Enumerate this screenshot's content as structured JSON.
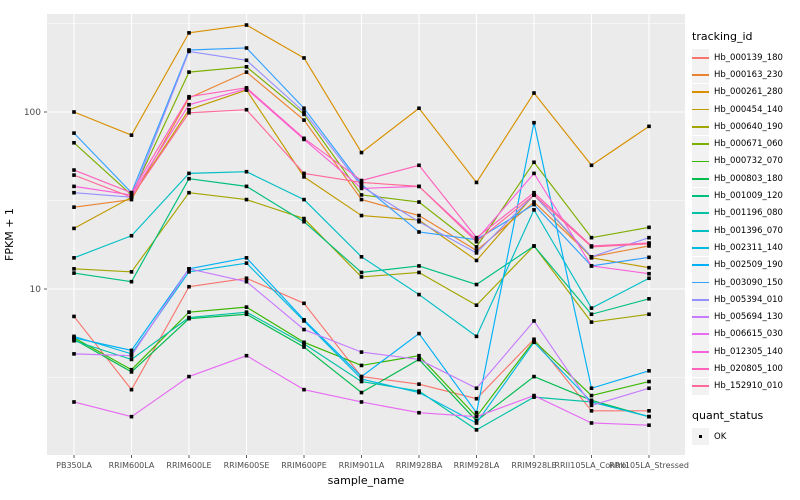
{
  "figure": {
    "background": "#FFFFFF",
    "panel_background": "#EBEBEB",
    "grid_color": "#FFFFFF",
    "tick_color": "#333333",
    "tick_label_color": "#4D4D4D",
    "axis_title_color": "#000000",
    "point_color": "#000000"
  },
  "legend": {
    "tracking_title": "tracking_id",
    "quant_title": "quant_status",
    "quant_items": [
      {
        "label": "OK",
        "marker": "filled-square"
      }
    ]
  },
  "axis": {
    "y_title": "FPKM + 1",
    "x_title": "sample_name",
    "y_tick_labels": [
      "100",
      "10"
    ]
  },
  "chart_data": {
    "type": "line",
    "title": "",
    "xlabel": "sample_name",
    "ylabel": "FPKM + 1",
    "y_scale": "log10",
    "ylim": [
      1.15,
      358
    ],
    "y_major_ticks": [
      10,
      100
    ],
    "y_minor_gridlines": [
      3.162,
      31.62,
      316.2
    ],
    "grid": true,
    "legend_position": "right",
    "point_shape": "filled-square",
    "categories": [
      "PB350LA",
      "RRIM600LA",
      "RRIM600LE",
      "RRIM600SE",
      "RRIM600PE",
      "RRIM901LA",
      "RRIM928BA",
      "RRIM928LA",
      "RRIM928LE",
      "RRII105LA_Control",
      "RRII105LA_Stressed"
    ],
    "series": [
      {
        "name": "Hb_000139_180",
        "color": "#F8766D",
        "values": [
          7.0,
          2.7,
          10.3,
          11.5,
          8.3,
          3.2,
          2.9,
          2.4,
          5.2,
          2.05,
          2.05
        ]
      },
      {
        "name": "Hb_000163_230",
        "color": "#EA8331",
        "values": [
          29,
          32,
          120,
          168,
          90,
          32,
          26,
          16.5,
          31,
          15.2,
          17.5
        ]
      },
      {
        "name": "Hb_000261_280",
        "color": "#D89000",
        "values": [
          100,
          74,
          280,
          310,
          202,
          59,
          105,
          40,
          128,
          50,
          83
        ]
      },
      {
        "name": "Hb_000454_140",
        "color": "#C09B00",
        "values": [
          22,
          33,
          103,
          133,
          43,
          26,
          24.5,
          14.5,
          34,
          15.0,
          13.2
        ]
      },
      {
        "name": "Hb_000640_190",
        "color": "#A3A500",
        "values": [
          13,
          12.5,
          35,
          32,
          25,
          11.7,
          12.4,
          8.1,
          17.5,
          6.5,
          7.2
        ]
      },
      {
        "name": "Hb_000671_060",
        "color": "#7CAE00",
        "values": [
          67,
          34,
          168,
          180,
          97,
          34,
          31,
          17.3,
          52,
          19.5,
          22.3
        ]
      },
      {
        "name": "Hb_000732_070",
        "color": "#39B600",
        "values": [
          5.3,
          3.5,
          7.4,
          7.9,
          5.0,
          3.7,
          4.2,
          1.9,
          5.1,
          2.5,
          3.0
        ]
      },
      {
        "name": "Hb_000803_180",
        "color": "#00BB4E",
        "values": [
          5.2,
          3.4,
          6.8,
          7.2,
          4.7,
          2.6,
          4.0,
          1.8,
          3.2,
          2.35,
          1.9
        ]
      },
      {
        "name": "Hb_001009_120",
        "color": "#00BF7D",
        "values": [
          12.3,
          11,
          42,
          38,
          24,
          12.4,
          13.5,
          10.6,
          17.5,
          7.2,
          8.8
        ]
      },
      {
        "name": "Hb_001196_080",
        "color": "#00C1A3",
        "values": [
          5.1,
          4.0,
          6.9,
          7.4,
          4.9,
          3.0,
          2.65,
          1.6,
          2.45,
          2.3,
          1.9
        ]
      },
      {
        "name": "Hb_001396_070",
        "color": "#00BFC4",
        "values": [
          15,
          20,
          45,
          46,
          32,
          15.2,
          9.3,
          5.4,
          28,
          7.8,
          11.5
        ]
      },
      {
        "name": "Hb_002311_140",
        "color": "#00BAE0",
        "values": [
          5.4,
          4.3,
          12.5,
          14,
          6.6,
          3.1,
          2.6,
          1.75,
          5.0,
          2.3,
          1.9
        ]
      },
      {
        "name": "Hb_002509_190",
        "color": "#00B0F6",
        "values": [
          5.3,
          4.5,
          13,
          15,
          6.7,
          3.2,
          5.6,
          2.0,
          87,
          2.75,
          3.45
        ]
      },
      {
        "name": "Hb_003090_150",
        "color": "#35A2FF",
        "values": [
          76,
          35,
          224,
          230,
          105,
          39,
          21,
          19,
          30,
          13.5,
          15.1
        ]
      },
      {
        "name": "Hb_005394_010",
        "color": "#9590FF",
        "values": [
          35,
          33,
          220,
          196,
          100,
          38,
          24,
          16,
          34,
          15.2,
          19.5
        ]
      },
      {
        "name": "Hb_005694_130",
        "color": "#C77CFF",
        "values": [
          4.3,
          4.2,
          13,
          11,
          5.9,
          4.4,
          4.0,
          2.75,
          6.6,
          2.2,
          2.75
        ]
      },
      {
        "name": "Hb_006615_030",
        "color": "#E76BF3",
        "values": [
          2.3,
          1.9,
          3.2,
          4.2,
          2.7,
          2.3,
          2.0,
          1.9,
          2.5,
          1.75,
          1.7
        ]
      },
      {
        "name": "Hb_012305_140",
        "color": "#FA62DB",
        "values": [
          38,
          34,
          110,
          135,
          70,
          37,
          38,
          19,
          45,
          13.5,
          12.2
        ]
      },
      {
        "name": "Hb_020805_100",
        "color": "#FF62BC",
        "values": [
          47,
          35,
          122,
          137,
          71,
          41,
          50,
          19.5,
          35,
          17.5,
          18.2
        ]
      },
      {
        "name": "Hb_152910_010",
        "color": "#FF6A98",
        "values": [
          44,
          33,
          99,
          103,
          45,
          40,
          38,
          18.5,
          34,
          17.3,
          18.0
        ]
      }
    ]
  }
}
